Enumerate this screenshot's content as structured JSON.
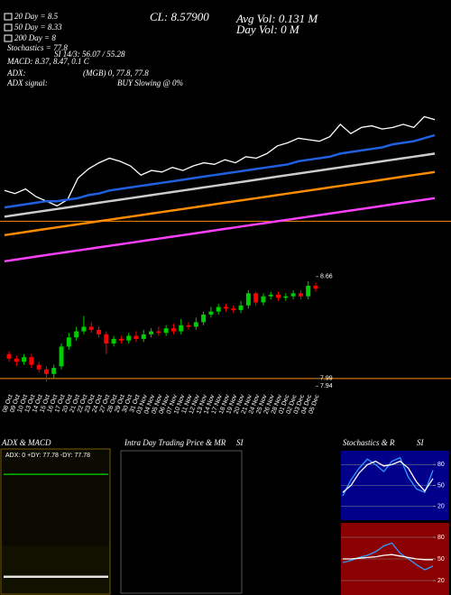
{
  "header": {
    "ma20": "20 Day = 8.5",
    "ma50": "50 Day = 8.33",
    "ma200": "200 Day = 8",
    "stoch": "Stochastics = 77.8",
    "si": "SI 14/3: 56.07 / 55.28",
    "macd": "MACD: 8.37, 8.47, 0.1 C",
    "adx": "ADX:",
    "adx_vals": "(MGB) 0, 77.8, 77.8",
    "adx_signal": "ADX  signal:",
    "signal": "BUY Slowing @ 0%",
    "close": "CL: 8.57900",
    "avg_vol": "Avg Vol: 0.131 M",
    "day_vol": "Day Vol: 0 M"
  },
  "chart_data": [
    {
      "type": "line",
      "ylim": [
        7.6,
        9.3
      ],
      "hline": 7.92,
      "hline_color": "#ff8c00",
      "series": [
        {
          "color": "#ffffff",
          "values": [
            8.12,
            8.1,
            8.13,
            8.08,
            8.05,
            8.02,
            8.06,
            8.2,
            8.26,
            8.3,
            8.33,
            8.31,
            8.28,
            8.22,
            8.25,
            8.24,
            8.27,
            8.25,
            8.28,
            8.3,
            8.29,
            8.32,
            8.3,
            8.34,
            8.33,
            8.36,
            8.41,
            8.43,
            8.46,
            8.45,
            8.44,
            8.47,
            8.55,
            8.49,
            8.53,
            8.54,
            8.52,
            8.53,
            8.55,
            8.53,
            8.6,
            8.58
          ]
        },
        {
          "color": "#cccccc",
          "values": [
            7.95,
            7.96,
            7.97,
            7.98,
            7.99,
            8.0,
            8.01,
            8.02,
            8.03,
            8.04,
            8.05,
            8.06,
            8.07,
            8.08,
            8.09,
            8.1,
            8.11,
            8.12,
            8.13,
            8.14,
            8.15,
            8.16,
            8.17,
            8.18,
            8.19,
            8.2,
            8.21,
            8.22,
            8.23,
            8.24,
            8.25,
            8.26,
            8.27,
            8.28,
            8.29,
            8.3,
            8.31,
            8.32,
            8.33,
            8.34,
            8.35,
            8.36
          ]
        },
        {
          "color": "#2060e0",
          "values": [
            8.01,
            8.02,
            8.03,
            8.04,
            8.05,
            8.05,
            8.06,
            8.07,
            8.09,
            8.1,
            8.12,
            8.13,
            8.14,
            8.15,
            8.16,
            8.17,
            8.18,
            8.19,
            8.2,
            8.21,
            8.22,
            8.23,
            8.24,
            8.25,
            8.26,
            8.27,
            8.28,
            8.29,
            8.31,
            8.32,
            8.33,
            8.34,
            8.36,
            8.37,
            8.38,
            8.39,
            8.4,
            8.42,
            8.43,
            8.44,
            8.46,
            8.48
          ]
        },
        {
          "color": "#ff8c00",
          "values": [
            7.83,
            7.84,
            7.85,
            7.86,
            7.87,
            7.88,
            7.89,
            7.9,
            7.91,
            7.92,
            7.93,
            7.94,
            7.95,
            7.96,
            7.97,
            7.98,
            7.99,
            8.0,
            8.01,
            8.02,
            8.03,
            8.04,
            8.05,
            8.06,
            8.07,
            8.08,
            8.09,
            8.1,
            8.11,
            8.12,
            8.13,
            8.14,
            8.15,
            8.16,
            8.17,
            8.18,
            8.19,
            8.2,
            8.21,
            8.22,
            8.23,
            8.24
          ]
        },
        {
          "color": "#ff40ff",
          "values": [
            7.66,
            7.67,
            7.68,
            7.69,
            7.7,
            7.71,
            7.72,
            7.73,
            7.74,
            7.75,
            7.76,
            7.77,
            7.78,
            7.79,
            7.8,
            7.81,
            7.82,
            7.83,
            7.84,
            7.85,
            7.86,
            7.87,
            7.88,
            7.89,
            7.9,
            7.91,
            7.92,
            7.93,
            7.94,
            7.95,
            7.96,
            7.97,
            7.98,
            7.99,
            8.0,
            8.01,
            8.02,
            8.03,
            8.04,
            8.05,
            8.06,
            8.07
          ]
        }
      ]
    },
    {
      "type": "candlestick",
      "ylim": [
        7.93,
        8.7
      ],
      "yticks": [
        7.94,
        7.99,
        8.66
      ],
      "hline": 7.99,
      "hline_color": "#ff8c00",
      "categories": [
        "08 Oct",
        "09 Oct",
        "10 Oct",
        "13 Oct",
        "14 Oct",
        "15 Oct",
        "16 Oct",
        "17 Oct",
        "20 Oct",
        "21 Oct",
        "22 Oct",
        "23 Oct",
        "24 Oct",
        "27 Oct",
        "28 Oct",
        "29 Oct",
        "30 Oct",
        "31 Oct",
        "03 Nov",
        "04 Nov",
        "05 Nov",
        "06 Nov",
        "07 Nov",
        "10 Nov",
        "11 Nov",
        "12 Nov",
        "13 Nov",
        "14 Nov",
        "17 Nov",
        "18 Nov",
        "19 Nov",
        "20 Nov",
        "21 Nov",
        "24 Nov",
        "25 Nov",
        "26 Nov",
        "28 Nov",
        "01 Dec",
        "02 Dec",
        "03 Dec",
        "04 Dec",
        "05 Dec"
      ],
      "open": [
        8.15,
        8.12,
        8.1,
        8.13,
        8.08,
        8.05,
        8.02,
        8.07,
        8.2,
        8.26,
        8.3,
        8.33,
        8.31,
        8.28,
        8.22,
        8.25,
        8.24,
        8.27,
        8.25,
        8.28,
        8.3,
        8.29,
        8.32,
        8.3,
        8.34,
        8.33,
        8.36,
        8.41,
        8.43,
        8.46,
        8.45,
        8.44,
        8.47,
        8.55,
        8.49,
        8.53,
        8.54,
        8.52,
        8.53,
        8.55,
        8.53,
        8.6
      ],
      "high": [
        8.17,
        8.14,
        8.15,
        8.15,
        8.1,
        8.07,
        8.08,
        8.22,
        8.29,
        8.33,
        8.4,
        8.36,
        8.33,
        8.3,
        8.27,
        8.27,
        8.29,
        8.3,
        8.31,
        8.32,
        8.33,
        8.34,
        8.35,
        8.38,
        8.36,
        8.39,
        8.43,
        8.46,
        8.48,
        8.48,
        8.47,
        8.5,
        8.57,
        8.56,
        8.55,
        8.56,
        8.56,
        8.55,
        8.57,
        8.57,
        8.63,
        8.62
      ],
      "low": [
        8.1,
        8.07,
        8.08,
        8.06,
        8.03,
        7.97,
        7.99,
        8.05,
        8.18,
        8.24,
        8.28,
        8.29,
        8.26,
        8.15,
        8.2,
        8.22,
        8.22,
        8.23,
        8.23,
        8.26,
        8.27,
        8.27,
        8.28,
        8.28,
        8.31,
        8.31,
        8.34,
        8.39,
        8.41,
        8.43,
        8.42,
        8.42,
        8.45,
        8.47,
        8.47,
        8.51,
        8.5,
        8.5,
        8.51,
        8.51,
        8.51,
        8.56
      ],
      "close": [
        8.12,
        8.1,
        8.13,
        8.08,
        8.05,
        8.02,
        8.06,
        8.2,
        8.26,
        8.3,
        8.33,
        8.31,
        8.28,
        8.22,
        8.25,
        8.24,
        8.27,
        8.25,
        8.28,
        8.3,
        8.29,
        8.32,
        8.3,
        8.34,
        8.33,
        8.36,
        8.41,
        8.43,
        8.46,
        8.45,
        8.44,
        8.47,
        8.55,
        8.49,
        8.53,
        8.54,
        8.52,
        8.53,
        8.55,
        8.53,
        8.6,
        8.58
      ],
      "up_color": "#00cc00",
      "down_color": "#ff0000"
    },
    {
      "type": "line",
      "title": "ADX  & MACD",
      "annotation": "ADX: 0  +DY: 77.78  -DY: 77.78",
      "ylim": [
        0,
        100
      ],
      "series": [
        {
          "color": "#00dd00",
          "values": [
            77.78,
            77.78,
            77.78,
            77.78,
            77.78,
            77.78,
            77.78,
            77.78,
            77.78,
            77.78,
            77.78,
            77.78
          ]
        }
      ]
    },
    {
      "type": "line",
      "ylim": [
        -0.5,
        0.5
      ],
      "series": [
        {
          "color": "#ffffff",
          "values": [
            -0.14,
            -0.14,
            -0.14,
            -0.14,
            -0.14,
            -0.14,
            -0.14,
            -0.14,
            -0.14,
            -0.14,
            -0.14,
            -0.14
          ]
        },
        {
          "color": "#dddddd",
          "values": [
            -0.12,
            -0.12,
            -0.12,
            -0.12,
            -0.12,
            -0.12,
            -0.12,
            -0.12,
            -0.12,
            -0.12,
            -0.12,
            -0.12
          ]
        }
      ]
    },
    {
      "type": "line",
      "title": "Intra Day Trading Price  & MR",
      "subtitle": "SI"
    },
    {
      "type": "line",
      "title": "Stochastics & R",
      "subtitle": "SI",
      "ylim": [
        0,
        100
      ],
      "yticks": [
        20,
        50,
        80
      ],
      "series": [
        {
          "color": "#3399ff",
          "values": [
            35,
            58,
            75,
            88,
            80,
            70,
            85,
            90,
            62,
            45,
            40,
            72
          ]
        },
        {
          "color": "#ffffff",
          "values": [
            40,
            50,
            68,
            80,
            85,
            78,
            80,
            85,
            75,
            55,
            42,
            60
          ]
        }
      ]
    },
    {
      "type": "line",
      "ylim": [
        0,
        100
      ],
      "yticks": [
        20,
        50,
        80
      ],
      "series": [
        {
          "color": "#3399ff",
          "values": [
            45,
            48,
            52,
            55,
            60,
            68,
            72,
            58,
            50,
            42,
            35,
            40
          ]
        },
        {
          "color": "#ffffff",
          "values": [
            50,
            50,
            51,
            52,
            53,
            55,
            56,
            54,
            52,
            50,
            49,
            49
          ]
        }
      ]
    }
  ]
}
